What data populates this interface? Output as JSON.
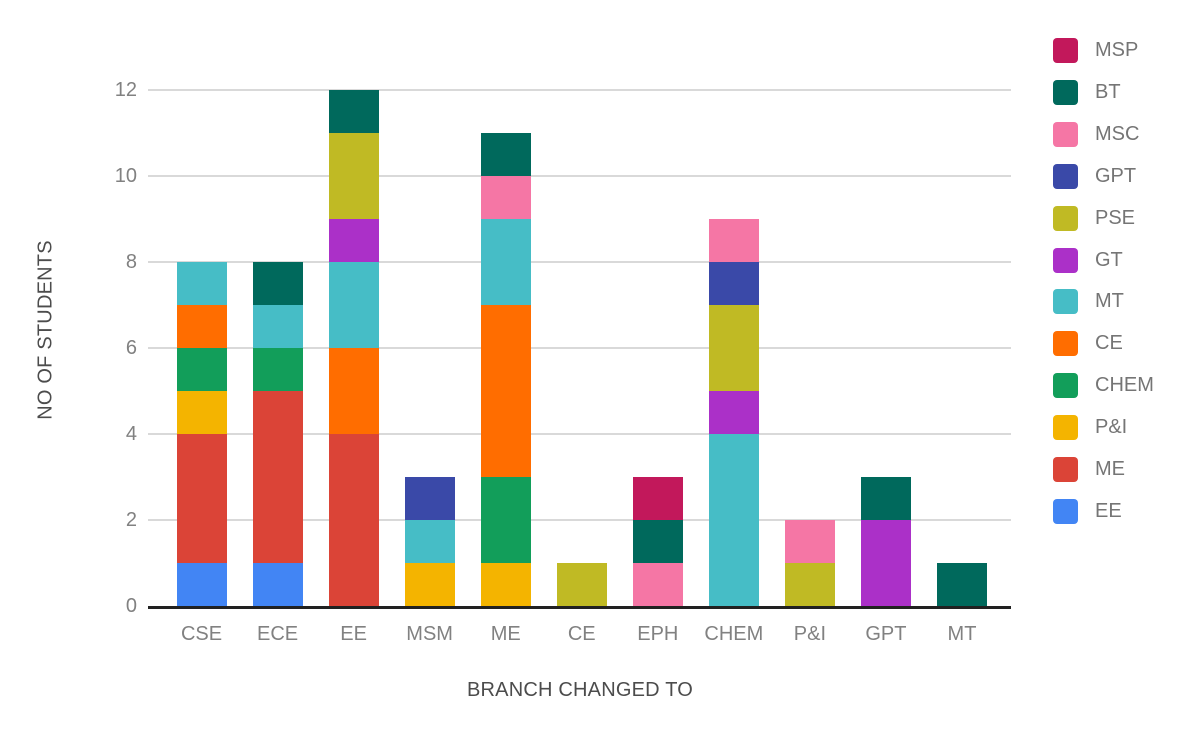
{
  "chart_data": {
    "type": "bar",
    "stacked": true,
    "title": "",
    "xlabel": "BRANCH CHANGED TO",
    "ylabel": "NO OF STUDENTS",
    "categories": [
      "CSE",
      "ECE",
      "EE",
      "MSM",
      "ME",
      "CE",
      "EPH",
      "CHEM",
      "P&I",
      "GPT",
      "MT"
    ],
    "series": [
      {
        "name": "MSP",
        "color": "#C2185B",
        "values": [
          0,
          0,
          0,
          0,
          0,
          0,
          1,
          0,
          0,
          0,
          0
        ]
      },
      {
        "name": "BT",
        "color": "#00695C",
        "values": [
          0,
          1,
          1,
          0,
          1,
          0,
          1,
          0,
          0,
          1,
          1
        ]
      },
      {
        "name": "MSC",
        "color": "#F576A5",
        "values": [
          0,
          0,
          0,
          0,
          1,
          0,
          1,
          1,
          1,
          0,
          0
        ]
      },
      {
        "name": "GPT",
        "color": "#3A49A8",
        "values": [
          0,
          0,
          0,
          1,
          0,
          0,
          0,
          1,
          0,
          0,
          0
        ]
      },
      {
        "name": "PSE",
        "color": "#C0BA24",
        "values": [
          0,
          0,
          2,
          0,
          0,
          1,
          0,
          2,
          1,
          0,
          0
        ]
      },
      {
        "name": "GT",
        "color": "#AB30C8",
        "values": [
          0,
          0,
          1,
          0,
          0,
          0,
          0,
          1,
          0,
          2,
          0
        ]
      },
      {
        "name": "MT",
        "color": "#46BDC6",
        "values": [
          1,
          1,
          2,
          1,
          2,
          0,
          0,
          4,
          0,
          0,
          0
        ]
      },
      {
        "name": "CE",
        "color": "#FF6D00",
        "values": [
          1,
          0,
          2,
          0,
          4,
          0,
          0,
          0,
          0,
          0,
          0
        ]
      },
      {
        "name": "CHEM",
        "color": "#129E5A",
        "values": [
          1,
          1,
          0,
          0,
          2,
          0,
          0,
          0,
          0,
          0,
          0
        ]
      },
      {
        "name": "P&I",
        "color": "#F4B400",
        "values": [
          1,
          0,
          0,
          1,
          1,
          0,
          0,
          0,
          0,
          0,
          0
        ]
      },
      {
        "name": "ME",
        "color": "#DB4437",
        "values": [
          3,
          4,
          4,
          0,
          0,
          0,
          0,
          0,
          0,
          0,
          0
        ]
      },
      {
        "name": "EE",
        "color": "#4285F4",
        "values": [
          1,
          1,
          0,
          0,
          0,
          0,
          0,
          0,
          0,
          0,
          0
        ]
      }
    ],
    "stack_order_bottom_to_top": [
      "EE",
      "ME",
      "P&I",
      "CHEM",
      "CE",
      "MT",
      "GT",
      "PSE",
      "GPT",
      "MSC",
      "BT",
      "MSP"
    ],
    "category_totals": [
      8,
      8,
      12,
      3,
      11,
      1,
      3,
      9,
      2,
      3,
      1
    ],
    "y_ticks": [
      "0",
      "2",
      "4",
      "6",
      "8",
      "10",
      "12"
    ],
    "ylim": [
      0,
      12
    ],
    "grid": true,
    "legend_position": "right"
  },
  "style_colors": {
    "background": "#FFFFFF",
    "gridline": "#D9D9D9",
    "baseline": "#212121",
    "tick_text": "#818181",
    "axis_title_text": "#4C4C4C",
    "legend_text": "#757575"
  }
}
